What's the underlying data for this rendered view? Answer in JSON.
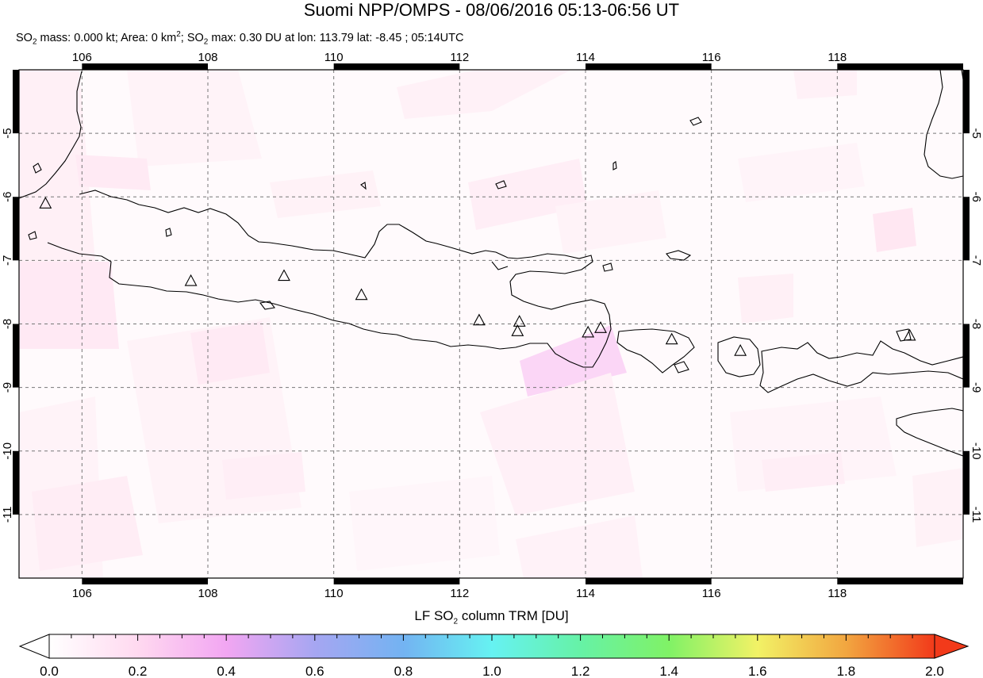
{
  "title": "Suomi NPP/OMPS - 08/06/2016 05:13-06:56 UT",
  "subtitle": {
    "mass_prefix": "SO",
    "mass_sub": "2",
    "mass_text": " mass: 0.000 kt; Area: 0 km",
    "area_sup": "2",
    "sep": "; SO",
    "max_sub": "2",
    "max_text": " max: 0.30 DU at lon: 113.79 lat: -8.45 ; 05:14UTC"
  },
  "map": {
    "lon_range": [
      105,
      120
    ],
    "lat_range": [
      -12,
      -4
    ],
    "lon_ticks": [
      "106",
      "108",
      "110",
      "112",
      "114",
      "116",
      "118"
    ],
    "lat_ticks": [
      "-5",
      "-6",
      "-7",
      "-8",
      "-9",
      "-10",
      "-11"
    ],
    "grid": true,
    "volcanoes": [
      {
        "lon": 105.42,
        "lat": -6.1
      },
      {
        "lon": 107.73,
        "lat": -7.32
      },
      {
        "lon": 109.21,
        "lat": -7.24
      },
      {
        "lon": 110.44,
        "lat": -7.54
      },
      {
        "lon": 112.31,
        "lat": -7.94
      },
      {
        "lon": 112.95,
        "lat": -7.96
      },
      {
        "lon": 112.92,
        "lat": -8.11
      },
      {
        "lon": 114.04,
        "lat": -8.13
      },
      {
        "lon": 114.24,
        "lat": -8.06
      },
      {
        "lon": 115.37,
        "lat": -8.24
      },
      {
        "lon": 116.46,
        "lat": -8.42
      },
      {
        "lon": 119.15,
        "lat": -8.18
      }
    ]
  },
  "colorbar": {
    "label_prefix": "LF SO",
    "label_sub": "2",
    "label_suffix": " column TRM [DU]",
    "ticks": [
      "0.0",
      "0.2",
      "0.4",
      "0.6",
      "0.8",
      "1.0",
      "1.2",
      "1.4",
      "1.6",
      "1.8",
      "2.0"
    ],
    "colors": [
      "#ffffff",
      "#ffd9f0",
      "#f2a6f2",
      "#a6a6f2",
      "#73b3f2",
      "#66f2f2",
      "#66f2a6",
      "#80f266",
      "#f2f266",
      "#f2a640",
      "#f23a1a"
    ]
  }
}
